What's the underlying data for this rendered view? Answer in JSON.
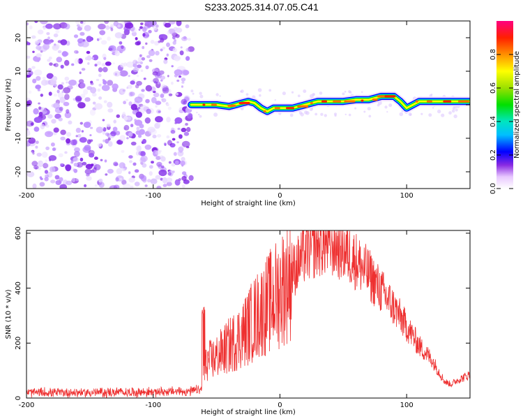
{
  "title": "S233.2025.314.07.05.C41",
  "chart_data": [
    {
      "type": "heatmap",
      "xlabel": "Height of straight line (km)",
      "ylabel": "Frequency (Hz)",
      "xlim": [
        -200,
        150
      ],
      "ylim": [
        -25,
        25
      ],
      "xticks": [
        -200,
        -100,
        0,
        100
      ],
      "yticks": [
        20,
        10,
        0,
        -10,
        -20
      ],
      "signal_start_km": -70,
      "noise_region": [
        -200,
        -70
      ],
      "trace": {
        "x": [
          -70,
          -60,
          -50,
          -40,
          -35,
          -30,
          -25,
          -20,
          -15,
          -10,
          -5,
          0,
          10,
          20,
          30,
          40,
          50,
          60,
          70,
          80,
          90,
          95,
          100,
          110,
          120,
          130,
          140,
          150
        ],
        "y": [
          0,
          0,
          0,
          -0.5,
          0,
          0.5,
          1,
          0.5,
          -1,
          -2,
          -1,
          -1,
          -1,
          0,
          1,
          1,
          1,
          1.5,
          1.5,
          2.5,
          2.5,
          1,
          -1,
          1,
          1,
          1,
          1,
          1
        ]
      },
      "colorbar": {
        "label": "Normalized spectral amplitude",
        "range": [
          0,
          1
        ],
        "ticks": [
          "0.0",
          "0.2",
          "0.4",
          "0.6",
          "0.8"
        ]
      }
    },
    {
      "type": "line",
      "xlabel": "Height of straight line (km)",
      "ylabel": "SNR (10 * v/v)",
      "xlim": [
        -200,
        150
      ],
      "ylim": [
        0,
        610
      ],
      "xticks": [
        -200,
        -100,
        0,
        100
      ],
      "yticks": [
        0,
        200,
        400,
        600
      ],
      "color": "#ee3030",
      "series": {
        "name": "SNR",
        "x": [
          -200,
          -150,
          -100,
          -70,
          -62,
          -58,
          -50,
          -40,
          -30,
          -20,
          -10,
          0,
          10,
          20,
          30,
          40,
          50,
          60,
          70,
          80,
          90,
          100,
          110,
          120,
          130,
          135,
          140,
          150
        ],
        "values": [
          20,
          20,
          22,
          25,
          30,
          130,
          150,
          190,
          230,
          290,
          340,
          390,
          460,
          530,
          560,
          560,
          540,
          500,
          450,
          390,
          330,
          260,
          190,
          140,
          60,
          50,
          65,
          85
        ]
      }
    }
  ]
}
